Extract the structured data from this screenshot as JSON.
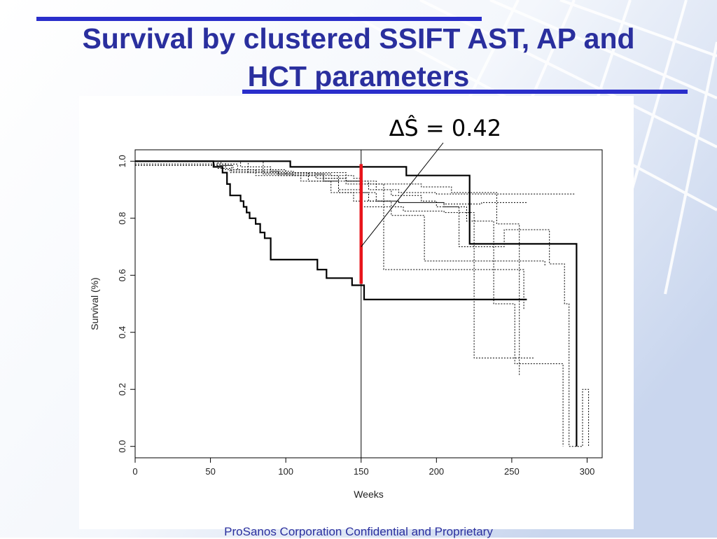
{
  "slide": {
    "title_line_1": "Survival by clustered SSIFT AST, AP and",
    "title_line_2": "HCT parameters",
    "footer": "ProSanos Corporation Confidential and Proprietary",
    "title_color": "#2a2f9e",
    "rule_color": "#2a2ecb"
  },
  "chart_data": {
    "type": "line",
    "subtype": "kaplan-meier step",
    "xlabel": "Weeks",
    "ylabel": "Survival (%)",
    "xlim": [
      0,
      310
    ],
    "ylim": [
      -0.04,
      1.04
    ],
    "xticks": [
      0,
      50,
      100,
      150,
      200,
      250,
      300
    ],
    "yticks": [
      0.0,
      0.2,
      0.4,
      0.6,
      0.8,
      1.0
    ],
    "ytick_labels": [
      "0.0",
      "0.2",
      "0.4",
      "0.6",
      "0.8",
      "1.0"
    ],
    "annotation": {
      "label": "∆Ŝ = 0.42",
      "vertical_line_x": 150,
      "highlight_x": 150,
      "highlight_from": 0.57,
      "highlight_to": 0.99,
      "highlight_color": "#e8141b",
      "pointer_at": [
        150,
        0.7
      ]
    },
    "series": [
      {
        "style": "solid",
        "x": [
          0,
          52,
          58,
          61,
          63,
          70,
          72,
          74,
          76,
          80,
          83,
          86,
          90,
          121,
          127,
          144,
          149,
          152,
          260
        ],
        "y": [
          1.0,
          0.98,
          0.96,
          0.92,
          0.88,
          0.86,
          0.84,
          0.82,
          0.8,
          0.78,
          0.75,
          0.73,
          0.655,
          0.62,
          0.59,
          0.565,
          0.565,
          0.515,
          0.515
        ]
      },
      {
        "style": "solid",
        "x": [
          0,
          103,
          150,
          180,
          220,
          222,
          292,
          293
        ],
        "y": [
          1.0,
          0.98,
          0.98,
          0.95,
          0.95,
          0.71,
          0.71,
          0.0
        ]
      },
      {
        "style": "dotted",
        "x": [
          0,
          55,
          63,
          95,
          120,
          140,
          160,
          175,
          200,
          240,
          292
        ],
        "y": [
          1.0,
          0.975,
          0.96,
          0.95,
          0.94,
          0.92,
          0.9,
          0.89,
          0.885,
          0.885,
          0.885
        ]
      },
      {
        "style": "dotted",
        "x": [
          0,
          57,
          65,
          100,
          140,
          155,
          165,
          255,
          258
        ],
        "y": [
          1.0,
          0.985,
          0.97,
          0.96,
          0.93,
          0.9,
          0.62,
          0.62,
          0.48
        ]
      },
      {
        "style": "dotted",
        "x": [
          0,
          60,
          80,
          110,
          135,
          145,
          170,
          192,
          200,
          272
        ],
        "y": [
          1.0,
          0.97,
          0.95,
          0.93,
          0.89,
          0.86,
          0.81,
          0.65,
          0.65,
          0.63
        ]
      },
      {
        "style": "dotted",
        "x": [
          0,
          68,
          85,
          115,
          130,
          155,
          175,
          205,
          230,
          260
        ],
        "y": [
          0.99,
          0.97,
          0.96,
          0.93,
          0.89,
          0.86,
          0.855,
          0.85,
          0.855,
          0.855
        ]
      },
      {
        "style": "dotted",
        "x": [
          0,
          75,
          100,
          125,
          140,
          160,
          190,
          210,
          240,
          255
        ],
        "y": [
          1.0,
          0.96,
          0.95,
          0.94,
          0.93,
          0.92,
          0.91,
          0.89,
          0.78,
          0.25
        ]
      },
      {
        "style": "dotted",
        "x": [
          0,
          64,
          95,
          125,
          150,
          160,
          175,
          205,
          220,
          238,
          252,
          266,
          284
        ],
        "y": [
          0.985,
          0.965,
          0.955,
          0.93,
          0.89,
          0.86,
          0.855,
          0.84,
          0.79,
          0.5,
          0.29,
          0.29,
          0.0
        ]
      },
      {
        "style": "dotted",
        "x": [
          0,
          85,
          105,
          135,
          150,
          165,
          178,
          205,
          215,
          245,
          275,
          285,
          288,
          297,
          301
        ],
        "y": [
          1.0,
          0.955,
          0.95,
          0.9,
          0.84,
          0.84,
          0.825,
          0.82,
          0.7,
          0.76,
          0.64,
          0.5,
          0.0,
          0.2,
          0.0
        ]
      },
      {
        "style": "dotted",
        "x": [
          0,
          70,
          90,
          105,
          120,
          130,
          145,
          150,
          165,
          170,
          190,
          200,
          215,
          225,
          240,
          250,
          265
        ],
        "y": [
          1.0,
          0.98,
          0.965,
          0.96,
          0.955,
          0.95,
          0.94,
          0.92,
          0.9,
          0.88,
          0.86,
          0.84,
          0.82,
          0.31,
          0.31,
          0.31,
          0.31
        ]
      }
    ]
  }
}
